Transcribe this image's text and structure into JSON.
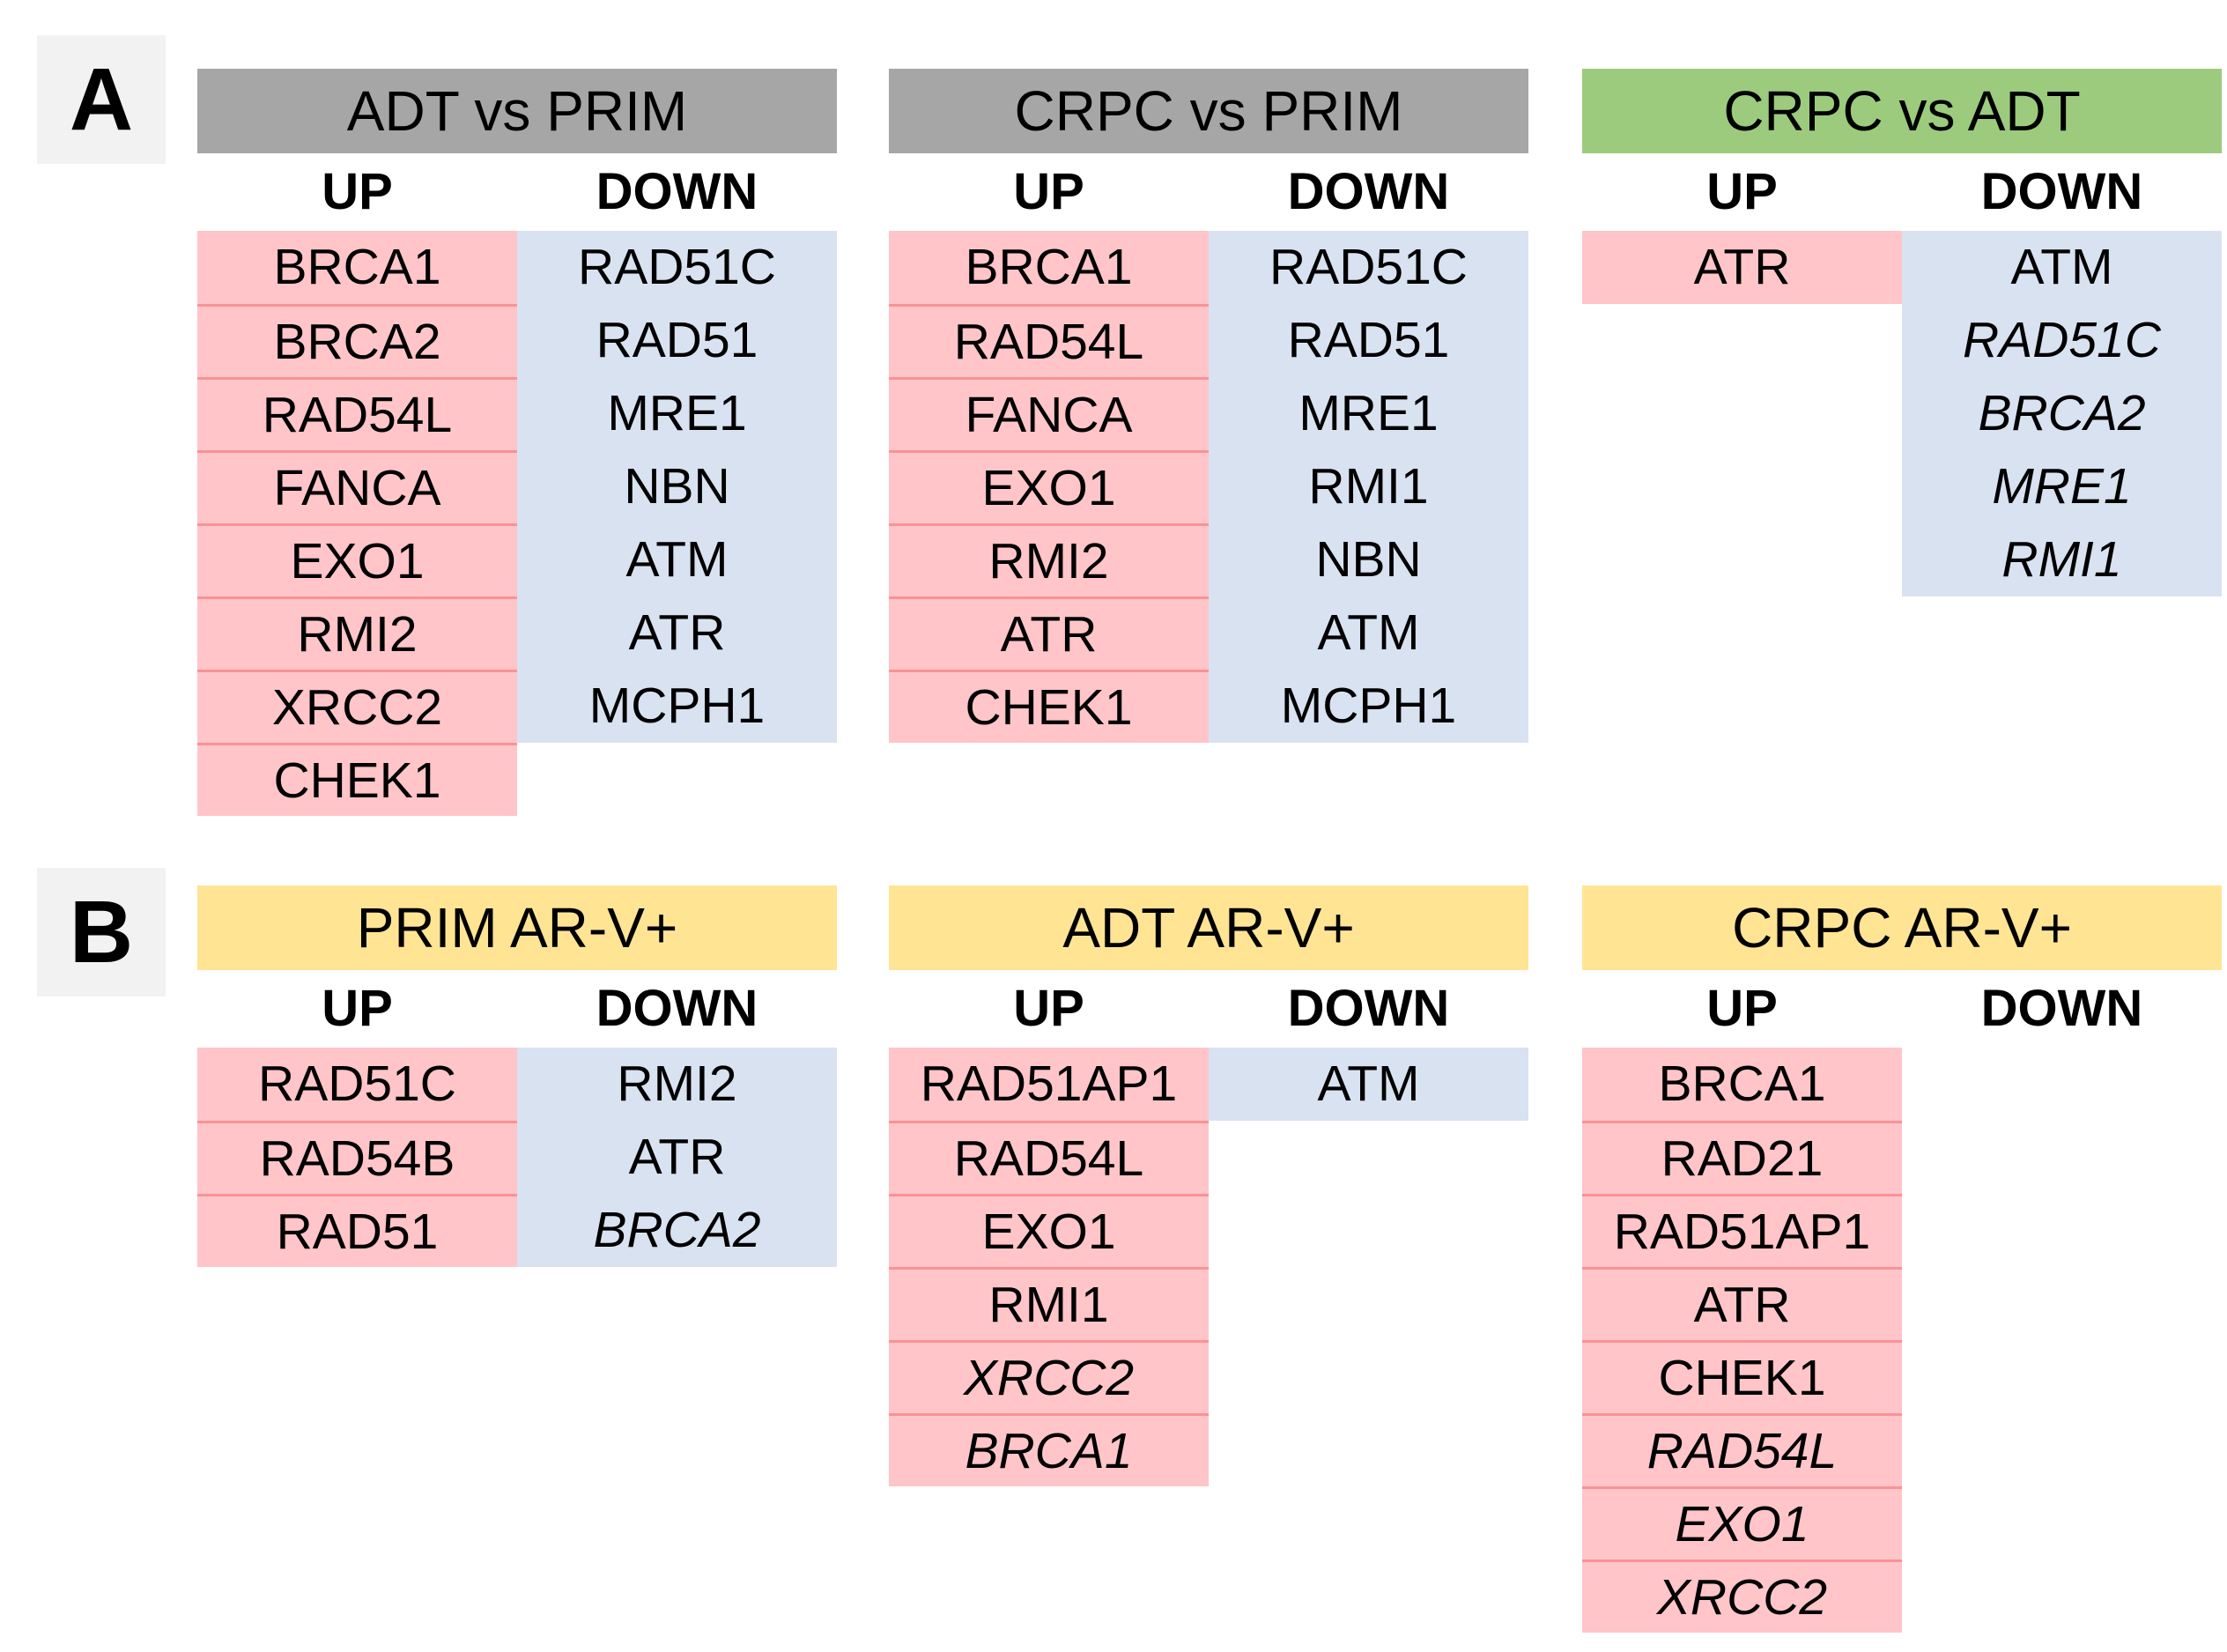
{
  "palette": {
    "gray_header": "#a6a6a6",
    "green_header": "#9ccb7e",
    "yellow_header": "#ffe494",
    "up_fill": "#ffc5c8",
    "up_divider": "#fa9296",
    "down_fill": "#d9e2f1",
    "panel_label_bg": "#f2f2f2",
    "text": "#000000"
  },
  "panels": [
    {
      "label": "A",
      "tables": [
        {
          "title": "ADT vs PRIM",
          "header_color_key": "gray_header",
          "up_label": "UP",
          "down_label": "DOWN",
          "up": [
            {
              "gene": "BRCA1"
            },
            {
              "gene": "BRCA2"
            },
            {
              "gene": "RAD54L"
            },
            {
              "gene": "FANCA"
            },
            {
              "gene": "EXO1"
            },
            {
              "gene": "RMI2"
            },
            {
              "gene": "XRCC2"
            },
            {
              "gene": "CHEK1"
            }
          ],
          "down": [
            {
              "gene": "RAD51C"
            },
            {
              "gene": "RAD51"
            },
            {
              "gene": "MRE1"
            },
            {
              "gene": "NBN"
            },
            {
              "gene": "ATM"
            },
            {
              "gene": "ATR"
            },
            {
              "gene": "MCPH1"
            }
          ]
        },
        {
          "title": "CRPC vs PRIM",
          "header_color_key": "gray_header",
          "up_label": "UP",
          "down_label": "DOWN",
          "up": [
            {
              "gene": "BRCA1"
            },
            {
              "gene": "RAD54L"
            },
            {
              "gene": "FANCA"
            },
            {
              "gene": "EXO1"
            },
            {
              "gene": "RMI2"
            },
            {
              "gene": "ATR"
            },
            {
              "gene": "CHEK1"
            }
          ],
          "down": [
            {
              "gene": "RAD51C"
            },
            {
              "gene": "RAD51"
            },
            {
              "gene": "MRE1"
            },
            {
              "gene": "RMI1"
            },
            {
              "gene": "NBN"
            },
            {
              "gene": "ATM"
            },
            {
              "gene": "MCPH1"
            }
          ]
        },
        {
          "title": "CRPC vs ADT",
          "header_color_key": "green_header",
          "up_label": "UP",
          "down_label": "DOWN",
          "up": [
            {
              "gene": "ATR"
            }
          ],
          "down": [
            {
              "gene": "ATM"
            },
            {
              "gene": "RAD51C",
              "italic": true
            },
            {
              "gene": "BRCA2",
              "italic": true
            },
            {
              "gene": "MRE1",
              "italic": true
            },
            {
              "gene": "RMI1",
              "italic": true
            }
          ]
        }
      ]
    },
    {
      "label": "B",
      "tables": [
        {
          "title": "PRIM AR-V+",
          "header_color_key": "yellow_header",
          "up_label": "UP",
          "down_label": "DOWN",
          "up": [
            {
              "gene": "RAD51C"
            },
            {
              "gene": "RAD54B"
            },
            {
              "gene": "RAD51"
            }
          ],
          "down": [
            {
              "gene": "RMI2"
            },
            {
              "gene": "ATR"
            },
            {
              "gene": "BRCA2",
              "italic": true
            }
          ]
        },
        {
          "title": "ADT AR-V+",
          "header_color_key": "yellow_header",
          "up_label": "UP",
          "down_label": "DOWN",
          "up": [
            {
              "gene": "RAD51AP1"
            },
            {
              "gene": "RAD54L"
            },
            {
              "gene": "EXO1"
            },
            {
              "gene": "RMI1"
            },
            {
              "gene": "XRCC2",
              "italic": true
            },
            {
              "gene": "BRCA1",
              "italic": true
            }
          ],
          "down": [
            {
              "gene": "ATM"
            }
          ]
        },
        {
          "title": "CRPC AR-V+",
          "header_color_key": "yellow_header",
          "up_label": "UP",
          "down_label": "DOWN",
          "up": [
            {
              "gene": "BRCA1"
            },
            {
              "gene": "RAD21"
            },
            {
              "gene": "RAD51AP1"
            },
            {
              "gene": "ATR"
            },
            {
              "gene": "CHEK1"
            },
            {
              "gene": "RAD54L",
              "italic": true
            },
            {
              "gene": "EXO1",
              "italic": true
            },
            {
              "gene": "XRCC2",
              "italic": true
            }
          ],
          "down": []
        }
      ]
    }
  ]
}
